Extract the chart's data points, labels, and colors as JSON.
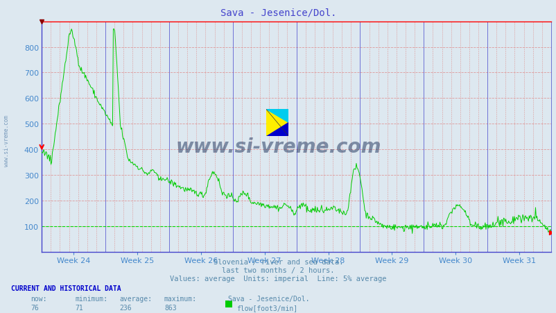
{
  "title": "Sava - Jesenice/Dol.",
  "title_color": "#4444cc",
  "bg_color": "#dde8f0",
  "plot_bg_color": "#dde8f0",
  "grid_color_major_h": "#cc6666",
  "grid_color_major_v": "#4444cc",
  "grid_color_minor": "#dd9999",
  "line_color": "#00cc00",
  "avg_line_color": "#00dd00",
  "avg_line_value": 100,
  "xlabel_color": "#4488cc",
  "ylabel_color": "#4488cc",
  "week_labels": [
    "Week 24",
    "Week 25",
    "Week 26",
    "Week 27",
    "Week 28",
    "Week 29",
    "Week 30",
    "Week 31"
  ],
  "ylim": [
    0,
    900
  ],
  "yticks": [
    100,
    200,
    300,
    400,
    500,
    600,
    700,
    800
  ],
  "subtitle1": "Slovenia / river and sea data.",
  "subtitle2": "last two months / 2 hours.",
  "subtitle3": "Values: average  Units: imperial  Line: 5% average",
  "footer_title": "CURRENT AND HISTORICAL DATA",
  "footer_cols": [
    "now:",
    "minimum:",
    "average:",
    "maximum:",
    "Sava - Jesenice/Dol."
  ],
  "footer_vals": [
    "76",
    "71",
    "236",
    "863",
    "flow[foot3/min]"
  ],
  "watermark": "www.si-vreme.com",
  "watermark_color": "#1a2f5a",
  "side_text": "www.si-vreme.com"
}
